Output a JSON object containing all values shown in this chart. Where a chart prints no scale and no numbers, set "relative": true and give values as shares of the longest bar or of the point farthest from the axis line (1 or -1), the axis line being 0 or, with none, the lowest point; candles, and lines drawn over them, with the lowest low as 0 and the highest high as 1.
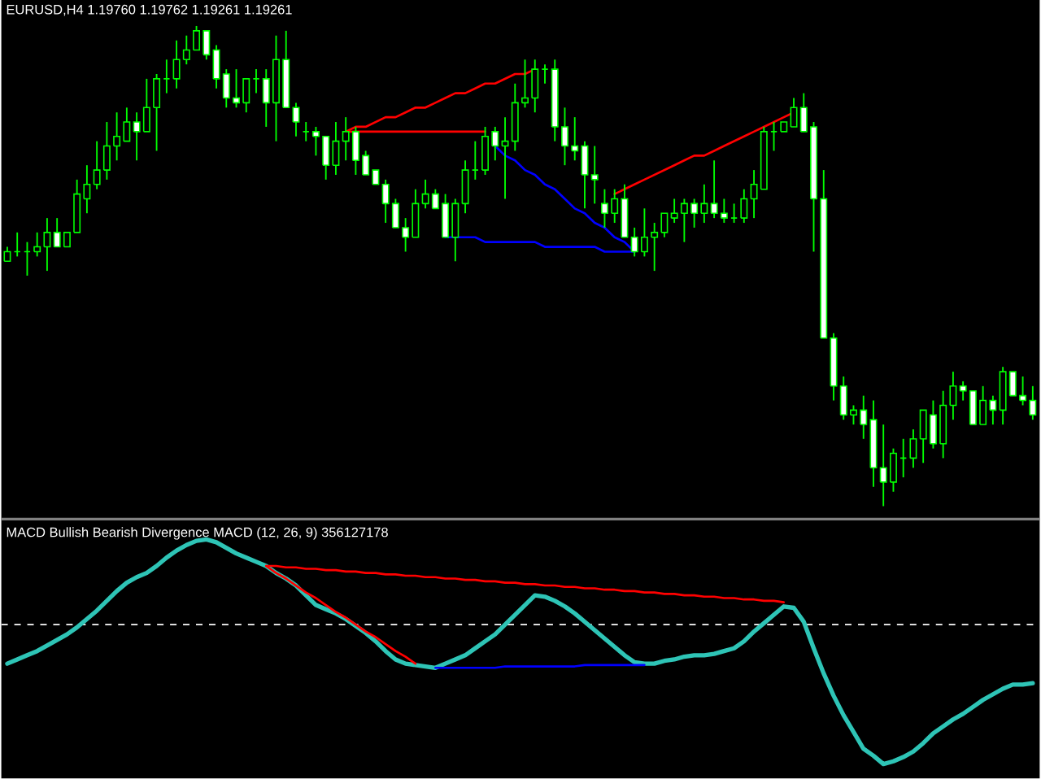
{
  "chart_data": [
    {
      "type": "candlestick",
      "title": "EURUSD,H4 1.19760 1.19762 1.19261 1.19261",
      "relative": true,
      "color": "#00ff00",
      "categories": [
        null,
        null,
        null,
        null,
        null,
        null,
        null,
        null,
        null,
        null,
        null,
        null,
        null,
        null,
        null,
        null,
        null,
        null,
        null,
        null,
        null,
        null,
        null,
        null,
        null,
        null,
        null,
        null,
        null,
        null,
        null,
        null,
        null,
        null,
        null,
        null,
        null,
        null,
        null,
        null,
        null,
        null,
        null,
        null,
        null,
        null,
        null,
        null,
        null,
        null,
        null,
        null,
        null,
        null,
        null,
        null,
        null,
        null,
        null,
        null,
        null,
        null,
        null,
        null,
        null,
        null,
        null,
        null,
        null,
        null,
        null,
        null,
        null,
        null,
        null,
        null,
        null,
        null,
        null,
        null,
        null,
        null,
        null,
        null,
        null,
        null,
        null,
        null,
        null,
        null,
        null,
        null,
        null,
        null,
        null,
        null,
        null,
        null,
        null,
        null,
        null,
        null,
        null,
        null
      ],
      "ohlc": [
        [
          0.51,
          0.54,
          0.51,
          0.53
        ],
        [
          0.53,
          0.57,
          0.52,
          0.53
        ],
        [
          0.53,
          0.55,
          0.48,
          0.53
        ],
        [
          0.53,
          0.57,
          0.52,
          0.54
        ],
        [
          0.54,
          0.6,
          0.49,
          0.57
        ],
        [
          0.57,
          0.6,
          0.54,
          0.54
        ],
        [
          0.54,
          0.57,
          0.54,
          0.57
        ],
        [
          0.57,
          0.68,
          0.57,
          0.65
        ],
        [
          0.64,
          0.71,
          0.61,
          0.67
        ],
        [
          0.67,
          0.76,
          0.66,
          0.7
        ],
        [
          0.7,
          0.8,
          0.68,
          0.75
        ],
        [
          0.75,
          0.82,
          0.72,
          0.77
        ],
        [
          0.76,
          0.83,
          0.76,
          0.8
        ],
        [
          0.8,
          0.82,
          0.72,
          0.78
        ],
        [
          0.78,
          0.89,
          0.78,
          0.83
        ],
        [
          0.83,
          0.9,
          0.74,
          0.89
        ],
        [
          0.89,
          0.93,
          0.86,
          0.89
        ],
        [
          0.89,
          0.97,
          0.87,
          0.93
        ],
        [
          0.93,
          0.98,
          0.92,
          0.95
        ],
        [
          0.95,
          1,
          0.95,
          0.99
        ],
        [
          0.99,
          0.99,
          0.93,
          0.94
        ],
        [
          0.95,
          0.96,
          0.87,
          0.89
        ],
        [
          0.9,
          0.91,
          0.83,
          0.85
        ],
        [
          0.85,
          0.91,
          0.83,
          0.84
        ],
        [
          0.84,
          0.89,
          0.82,
          0.89
        ],
        [
          0.89,
          0.91,
          0.86,
          0.89
        ],
        [
          0.89,
          0.91,
          0.79,
          0.84
        ],
        [
          0.84,
          0.98,
          0.76,
          0.93
        ],
        [
          0.93,
          0.99,
          0.83,
          0.83
        ],
        [
          0.83,
          0.84,
          0.77,
          0.8
        ],
        [
          0.78,
          0.8,
          0.76,
          0.78
        ],
        [
          0.78,
          0.79,
          0.73,
          0.77
        ],
        [
          0.77,
          0.77,
          0.68,
          0.71
        ],
        [
          0.71,
          0.8,
          0.69,
          0.76
        ],
        [
          0.76,
          0.81,
          0.72,
          0.78
        ],
        [
          0.78,
          0.79,
          0.69,
          0.72
        ],
        [
          0.73,
          0.74,
          0.69,
          0.69
        ],
        [
          0.7,
          0.7,
          0.67,
          0.67
        ],
        [
          0.67,
          0.68,
          0.59,
          0.63
        ],
        [
          0.63,
          0.64,
          0.58,
          0.58
        ],
        [
          0.58,
          0.6,
          0.53,
          0.56
        ],
        [
          0.56,
          0.66,
          0.56,
          0.63
        ],
        [
          0.63,
          0.68,
          0.62,
          0.65
        ],
        [
          0.65,
          0.66,
          0.62,
          0.62
        ],
        [
          0.63,
          0.65,
          0.56,
          0.56
        ],
        [
          0.56,
          0.64,
          0.51,
          0.63
        ],
        [
          0.63,
          0.72,
          0.61,
          0.7
        ],
        [
          0.7,
          0.76,
          0.68,
          0.7
        ],
        [
          0.7,
          0.79,
          0.69,
          0.77
        ],
        [
          0.78,
          0.79,
          0.72,
          0.75
        ],
        [
          0.75,
          0.81,
          0.64,
          0.76
        ],
        [
          0.76,
          0.88,
          0.74,
          0.84
        ],
        [
          0.84,
          0.93,
          0.83,
          0.85
        ],
        [
          0.85,
          0.93,
          0.82,
          0.91
        ],
        [
          0.91,
          0.92,
          0.88,
          0.91
        ],
        [
          0.91,
          0.93,
          0.76,
          0.79
        ],
        [
          0.79,
          0.83,
          0.71,
          0.75
        ],
        [
          0.75,
          0.81,
          0.72,
          0.74
        ],
        [
          0.75,
          0.76,
          0.62,
          0.69
        ],
        [
          0.69,
          0.75,
          0.63,
          0.68
        ],
        [
          0.63,
          0.66,
          0.58,
          0.61
        ],
        [
          0.61,
          0.66,
          0.59,
          0.64
        ],
        [
          0.64,
          0.67,
          0.56,
          0.56
        ],
        [
          0.56,
          0.58,
          0.52,
          0.53
        ],
        [
          0.53,
          0.62,
          0.52,
          0.56
        ],
        [
          0.56,
          0.59,
          0.49,
          0.57
        ],
        [
          0.57,
          0.61,
          0.56,
          0.61
        ],
        [
          0.6,
          0.64,
          0.59,
          0.61
        ],
        [
          0.61,
          0.64,
          0.55,
          0.63
        ],
        [
          0.63,
          0.64,
          0.58,
          0.61
        ],
        [
          0.61,
          0.67,
          0.59,
          0.63
        ],
        [
          0.63,
          0.72,
          0.6,
          0.61
        ],
        [
          0.61,
          0.64,
          0.59,
          0.6
        ],
        [
          0.6,
          0.63,
          0.59,
          0.6
        ],
        [
          0.6,
          0.66,
          0.59,
          0.64
        ],
        [
          0.64,
          0.7,
          0.6,
          0.67
        ],
        [
          0.66,
          0.79,
          0.66,
          0.78
        ],
        [
          0.78,
          0.8,
          0.74,
          0.78
        ],
        [
          0.78,
          0.8,
          0.78,
          0.8
        ],
        [
          0.79,
          0.85,
          0.79,
          0.83
        ],
        [
          0.83,
          0.86,
          0.78,
          0.78
        ],
        [
          0.79,
          0.8,
          0.53,
          0.64
        ],
        [
          0.64,
          0.7,
          0.35,
          0.35
        ],
        [
          0.35,
          0.36,
          0.22,
          0.25
        ],
        [
          0.25,
          0.27,
          0.18,
          0.19
        ],
        [
          0.19,
          0.21,
          0.17,
          0.2
        ],
        [
          0.2,
          0.23,
          0.14,
          0.17
        ],
        [
          0.18,
          0.22,
          0.04,
          0.08
        ],
        [
          0.08,
          0.17,
          0,
          0.05
        ],
        [
          0.05,
          0.12,
          0.03,
          0.11
        ],
        [
          0.1,
          0.14,
          0.06,
          0.1
        ],
        [
          0.1,
          0.16,
          0.08,
          0.14
        ],
        [
          0.14,
          0.2,
          0.09,
          0.2
        ],
        [
          0.19,
          0.22,
          0.12,
          0.13
        ],
        [
          0.13,
          0.24,
          0.1,
          0.21
        ],
        [
          0.21,
          0.28,
          0.18,
          0.25
        ],
        [
          0.25,
          0.26,
          0.22,
          0.24
        ],
        [
          0.24,
          0.24,
          0.17,
          0.17
        ],
        [
          0.17,
          0.25,
          0.17,
          0.22
        ],
        [
          0.22,
          0.23,
          0.17,
          0.2
        ],
        [
          0.2,
          0.29,
          0.17,
          0.28
        ],
        [
          0.28,
          0.28,
          0.23,
          0.23
        ],
        [
          0.23,
          0.27,
          0.21,
          0.22
        ],
        [
          0.22,
          0.25,
          0.18,
          0.19
        ]
      ],
      "series": [
        {
          "type": "line",
          "color": "#ff0000",
          "values": [
            null,
            null,
            null,
            null,
            null,
            null,
            null,
            null,
            null,
            null,
            null,
            null,
            null,
            null,
            null,
            null,
            null,
            null,
            null,
            null,
            null,
            null,
            null,
            null,
            null,
            null,
            null,
            null,
            null,
            null,
            null,
            null,
            null,
            null,
            0.78,
            0.79,
            0.79,
            0.8,
            0.81,
            0.81,
            0.82,
            0.83,
            0.83,
            0.84,
            0.85,
            0.86,
            0.86,
            0.87,
            0.88,
            0.88,
            0.89,
            0.9,
            0.9,
            0.91,
            null,
            null,
            null,
            null,
            null,
            null,
            null,
            null,
            null,
            null,
            null,
            null,
            null,
            null,
            null,
            null,
            null,
            null,
            null,
            null,
            null,
            null,
            null,
            null,
            null,
            null,
            null,
            null,
            null,
            null,
            null,
            null,
            null,
            null,
            null,
            null,
            null,
            null,
            null,
            null,
            null,
            null,
            null,
            null,
            null,
            null,
            null,
            null,
            null,
            null
          ]
        },
        {
          "type": "line",
          "color": "#ff0000",
          "values": [
            null,
            null,
            null,
            null,
            null,
            null,
            null,
            null,
            null,
            null,
            null,
            null,
            null,
            null,
            null,
            null,
            null,
            null,
            null,
            null,
            null,
            null,
            null,
            null,
            null,
            null,
            null,
            null,
            null,
            null,
            null,
            null,
            null,
            null,
            0.78,
            0.78,
            0.78,
            0.78,
            0.78,
            0.78,
            0.78,
            0.78,
            0.78,
            0.78,
            0.78,
            0.78,
            0.78,
            0.78,
            0.78,
            null,
            null,
            null,
            null,
            null,
            null,
            null,
            null,
            null,
            null,
            null,
            null,
            null,
            null,
            null,
            null,
            null,
            null,
            null,
            null,
            null,
            null,
            null,
            null,
            null,
            null,
            null,
            null,
            null,
            null,
            null,
            null,
            null,
            null,
            null,
            null,
            null,
            null,
            null,
            null,
            null,
            null,
            null,
            null,
            null,
            null,
            null,
            null,
            null,
            null,
            null,
            null,
            null,
            null,
            null
          ]
        },
        {
          "type": "line",
          "color": "#0000ff",
          "values": [
            null,
            null,
            null,
            null,
            null,
            null,
            null,
            null,
            null,
            null,
            null,
            null,
            null,
            null,
            null,
            null,
            null,
            null,
            null,
            null,
            null,
            null,
            null,
            null,
            null,
            null,
            null,
            null,
            null,
            null,
            null,
            null,
            null,
            null,
            null,
            null,
            null,
            null,
            null,
            null,
            null,
            null,
            null,
            null,
            null,
            null,
            null,
            null,
            null,
            0.75,
            0.73,
            0.72,
            0.7,
            0.69,
            0.67,
            0.66,
            0.64,
            0.62,
            0.61,
            0.59,
            0.58,
            0.56,
            0.55,
            0.53,
            null,
            null,
            null,
            null,
            null,
            null,
            null,
            null,
            null,
            null,
            null,
            null,
            null,
            null,
            null,
            null,
            null,
            null,
            null,
            null,
            null,
            null,
            null,
            null,
            null,
            null,
            null,
            null,
            null,
            null,
            null,
            null,
            null,
            null,
            null,
            null,
            null,
            null,
            null,
            null
          ]
        },
        {
          "type": "line",
          "color": "#0000ff",
          "values": [
            null,
            null,
            null,
            null,
            null,
            null,
            null,
            null,
            null,
            null,
            null,
            null,
            null,
            null,
            null,
            null,
            null,
            null,
            null,
            null,
            null,
            null,
            null,
            null,
            null,
            null,
            null,
            null,
            null,
            null,
            null,
            null,
            null,
            null,
            null,
            null,
            null,
            null,
            null,
            null,
            null,
            null,
            null,
            null,
            0.56,
            0.56,
            0.56,
            0.56,
            0.55,
            0.55,
            0.55,
            0.55,
            0.55,
            0.55,
            0.54,
            0.54,
            0.54,
            0.54,
            0.54,
            0.54,
            0.53,
            0.53,
            0.53,
            0.53,
            null,
            null,
            null,
            null,
            null,
            null,
            null,
            null,
            null,
            null,
            null,
            null,
            null,
            null,
            null,
            null,
            null,
            null,
            null,
            null,
            null,
            null,
            null,
            null,
            null,
            null,
            null,
            null,
            null,
            null,
            null,
            null,
            null,
            null,
            null,
            null,
            null,
            null,
            null,
            null
          ]
        },
        {
          "type": "line",
          "color": "#ff0000",
          "values": [
            null,
            null,
            null,
            null,
            null,
            null,
            null,
            null,
            null,
            null,
            null,
            null,
            null,
            null,
            null,
            null,
            null,
            null,
            null,
            null,
            null,
            null,
            null,
            null,
            null,
            null,
            null,
            null,
            null,
            null,
            null,
            null,
            null,
            null,
            null,
            null,
            null,
            null,
            null,
            null,
            null,
            null,
            null,
            null,
            null,
            null,
            null,
            null,
            null,
            null,
            null,
            null,
            null,
            null,
            null,
            null,
            null,
            null,
            null,
            null,
            null,
            0.65,
            0.66,
            0.67,
            0.68,
            0.69,
            0.7,
            0.71,
            0.72,
            0.73,
            0.73,
            0.74,
            0.75,
            0.76,
            0.77,
            0.78,
            0.79,
            0.8,
            0.81,
            0.82,
            null,
            null,
            null,
            null,
            null,
            null,
            null,
            null,
            null,
            null,
            null,
            null,
            null,
            null,
            null,
            null,
            null,
            null,
            null,
            null,
            null,
            null,
            null,
            null
          ]
        }
      ]
    },
    {
      "type": "line",
      "title": "MACD Bullish Bearish Divergence MACD (12, 26, 9) 356127178",
      "relative": true,
      "categories": [
        null,
        null,
        null,
        null,
        null,
        null,
        null,
        null,
        null,
        null,
        null,
        null,
        null,
        null,
        null,
        null,
        null,
        null,
        null,
        null,
        null,
        null,
        null,
        null,
        null,
        null,
        null,
        null,
        null,
        null,
        null,
        null,
        null,
        null,
        null,
        null,
        null,
        null,
        null,
        null,
        null,
        null,
        null,
        null,
        null,
        null,
        null,
        null,
        null,
        null,
        null,
        null,
        null,
        null,
        null,
        null,
        null,
        null,
        null,
        null,
        null,
        null,
        null,
        null,
        null,
        null,
        null,
        null,
        null,
        null,
        null,
        null,
        null,
        null,
        null,
        null,
        null,
        null,
        null,
        null,
        null,
        null,
        null,
        null,
        null,
        null,
        null,
        null,
        null,
        null,
        null,
        null,
        null,
        null,
        null,
        null,
        null,
        null,
        null,
        null,
        null,
        null,
        null,
        null
      ],
      "ref_lines": [
        {
          "axis": "y",
          "value": 0,
          "color": "#ffffff",
          "line_style": "dashed"
        }
      ],
      "series": [
        {
          "color": "#2ec4b6",
          "values": [
            -0.28,
            -0.25,
            -0.22,
            -0.19,
            -0.15,
            -0.11,
            -0.07,
            -0.02,
            0.04,
            0.1,
            0.17,
            0.24,
            0.3,
            0.34,
            0.37,
            0.42,
            0.48,
            0.53,
            0.57,
            0.6,
            0.61,
            0.59,
            0.55,
            0.51,
            0.48,
            0.45,
            0.42,
            0.37,
            0.33,
            0.28,
            0.21,
            0.14,
            0.11,
            0.08,
            0.04,
            -0.01,
            -0.06,
            -0.12,
            -0.19,
            -0.25,
            -0.28,
            -0.29,
            -0.3,
            -0.31,
            -0.28,
            -0.25,
            -0.22,
            -0.17,
            -0.12,
            -0.07,
            0.0,
            0.07,
            0.14,
            0.21,
            0.2,
            0.17,
            0.13,
            0.08,
            0.02,
            -0.04,
            -0.1,
            -0.16,
            -0.22,
            -0.27,
            -0.28,
            -0.28,
            -0.26,
            -0.25,
            -0.23,
            -0.22,
            -0.22,
            -0.21,
            -0.19,
            -0.17,
            -0.12,
            -0.05,
            0.01,
            0.07,
            0.13,
            0.12,
            0.02,
            -0.17,
            -0.35,
            -0.51,
            -0.65,
            -0.77,
            -0.89,
            -0.94,
            -1,
            -0.98,
            -0.95,
            -0.91,
            -0.85,
            -0.78,
            -0.73,
            -0.68,
            -0.64,
            -0.59,
            -0.54,
            -0.5,
            -0.46,
            -0.43,
            -0.43,
            -0.42
          ]
        },
        {
          "color": "#ff0000",
          "values": [
            null,
            null,
            null,
            null,
            null,
            null,
            null,
            null,
            null,
            null,
            null,
            null,
            null,
            null,
            null,
            null,
            null,
            null,
            null,
            null,
            null,
            null,
            null,
            null,
            null,
            null,
            0.42,
            0.42,
            0.41,
            0.41,
            0.4,
            0.4,
            0.39,
            0.39,
            0.38,
            0.38,
            0.37,
            0.37,
            0.36,
            0.36,
            0.35,
            0.35,
            0.34,
            0.34,
            0.33,
            0.33,
            0.32,
            0.32,
            0.31,
            0.31,
            0.3,
            0.3,
            0.29,
            0.29,
            0.28,
            0.28,
            0.27,
            0.27,
            0.26,
            0.26,
            0.25,
            0.25,
            0.24,
            0.24,
            0.23,
            0.23,
            0.22,
            0.22,
            0.21,
            0.21,
            0.2,
            0.2,
            0.19,
            0.19,
            0.18,
            0.18,
            0.17,
            0.17,
            0.16,
            null,
            null,
            null,
            null,
            null,
            null,
            null,
            null,
            null,
            null,
            null,
            null,
            null,
            null,
            null,
            null,
            null,
            null,
            null,
            null,
            null,
            null,
            null,
            null,
            null
          ]
        },
        {
          "color": "#ff0000",
          "values": [
            null,
            null,
            null,
            null,
            null,
            null,
            null,
            null,
            null,
            null,
            null,
            null,
            null,
            null,
            null,
            null,
            null,
            null,
            null,
            null,
            null,
            null,
            null,
            null,
            null,
            null,
            0.42,
            0.37,
            0.33,
            0.28,
            0.23,
            0.19,
            0.14,
            0.09,
            0.05,
            0.0,
            -0.05,
            -0.09,
            -0.14,
            -0.19,
            -0.23,
            -0.28,
            null,
            null,
            null,
            null,
            null,
            null,
            null,
            null,
            null,
            null,
            null,
            null,
            null,
            null,
            null,
            null,
            null,
            null,
            null,
            null,
            null,
            null,
            null,
            null,
            null,
            null,
            null,
            null,
            null,
            null,
            null,
            null,
            null,
            null,
            null,
            null,
            null,
            null,
            null,
            null,
            null,
            null,
            null,
            null,
            null,
            null,
            null,
            null,
            null,
            null,
            null,
            null,
            null,
            null,
            null,
            null,
            null,
            null,
            null,
            null,
            null,
            null
          ]
        },
        {
          "color": "#0000ff",
          "values": [
            null,
            null,
            null,
            null,
            null,
            null,
            null,
            null,
            null,
            null,
            null,
            null,
            null,
            null,
            null,
            null,
            null,
            null,
            null,
            null,
            null,
            null,
            null,
            null,
            null,
            null,
            null,
            null,
            null,
            null,
            null,
            null,
            null,
            null,
            null,
            null,
            null,
            null,
            null,
            null,
            null,
            null,
            null,
            -0.31,
            -0.31,
            -0.31,
            -0.31,
            -0.31,
            -0.31,
            -0.31,
            -0.3,
            -0.3,
            -0.3,
            -0.3,
            -0.3,
            -0.3,
            -0.3,
            -0.3,
            -0.29,
            -0.29,
            -0.29,
            -0.29,
            -0.29,
            -0.29,
            -0.29,
            null,
            null,
            null,
            null,
            null,
            null,
            null,
            null,
            null,
            null,
            null,
            null,
            null,
            null,
            null,
            null,
            null,
            null,
            null,
            null,
            null,
            null,
            null,
            null,
            null,
            null,
            null,
            null,
            null,
            null,
            null,
            null,
            null,
            null,
            null,
            null,
            null,
            null,
            null
          ]
        }
      ]
    }
  ]
}
